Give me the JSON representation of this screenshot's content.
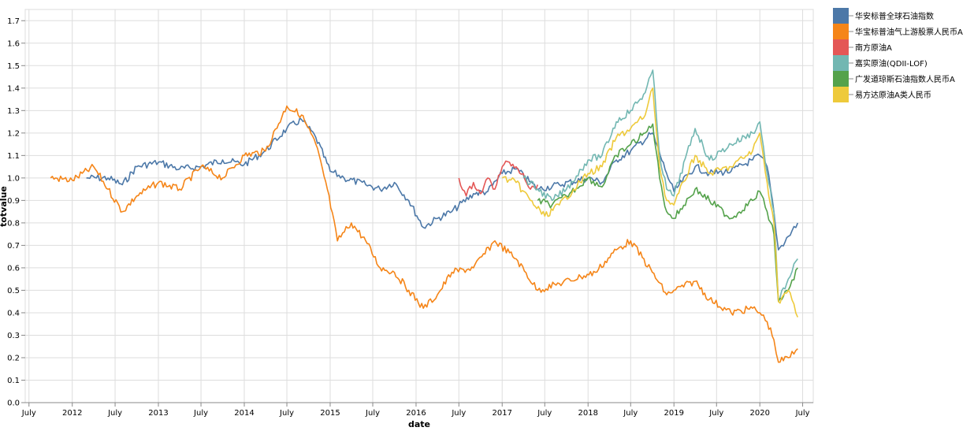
{
  "chart_data": {
    "type": "line",
    "xlabel": "date",
    "ylabel": "totvalue",
    "x_range": [
      "2011-06-15",
      "2020-08-15"
    ],
    "ylim": [
      0,
      1.75
    ],
    "y_ticks": [
      "0.0",
      "0.1",
      "0.2",
      "0.3",
      "0.4",
      "0.5",
      "0.6",
      "0.7",
      "0.8",
      "0.9",
      "1.0",
      "1.1",
      "1.2",
      "1.3",
      "1.4",
      "1.5",
      "1.6",
      "1.7"
    ],
    "x_ticks": [
      {
        "date": "2011-07-01",
        "label": "July"
      },
      {
        "date": "2012-01-01",
        "label": "2012"
      },
      {
        "date": "2012-07-01",
        "label": "July"
      },
      {
        "date": "2013-01-01",
        "label": "2013"
      },
      {
        "date": "2013-07-01",
        "label": "July"
      },
      {
        "date": "2014-01-01",
        "label": "2014"
      },
      {
        "date": "2014-07-01",
        "label": "July"
      },
      {
        "date": "2015-01-01",
        "label": "2015"
      },
      {
        "date": "2015-07-01",
        "label": "July"
      },
      {
        "date": "2016-01-01",
        "label": "2016"
      },
      {
        "date": "2016-07-01",
        "label": "July"
      },
      {
        "date": "2017-01-01",
        "label": "2017"
      },
      {
        "date": "2017-07-01",
        "label": "July"
      },
      {
        "date": "2018-01-01",
        "label": "2018"
      },
      {
        "date": "2018-07-01",
        "label": "July"
      },
      {
        "date": "2019-01-01",
        "label": "2019"
      },
      {
        "date": "2019-07-01",
        "label": "July"
      },
      {
        "date": "2020-01-01",
        "label": "2020"
      },
      {
        "date": "2020-07-01",
        "label": "July"
      }
    ],
    "grid": true,
    "legend_position": "right",
    "series": [
      {
        "name": "华安标普全球石油指数",
        "color": "#4c78a8",
        "x": [
          "2012-03-01",
          "2012-06-01",
          "2012-08-01",
          "2012-10-01",
          "2013-01-01",
          "2013-04-01",
          "2013-07-01",
          "2013-10-01",
          "2014-01-01",
          "2014-04-01",
          "2014-07-01",
          "2014-09-01",
          "2014-11-01",
          "2015-01-01",
          "2015-03-01",
          "2015-06-01",
          "2015-08-01",
          "2015-10-01",
          "2015-12-01",
          "2016-02-01",
          "2016-04-01",
          "2016-06-01",
          "2016-09-01",
          "2016-11-01",
          "2017-01-01",
          "2017-03-01",
          "2017-06-01",
          "2017-09-01",
          "2018-01-01",
          "2018-03-01",
          "2018-05-01",
          "2018-07-01",
          "2018-10-01",
          "2018-12-01",
          "2019-01-01",
          "2019-04-01",
          "2019-06-01",
          "2019-09-01",
          "2019-12-01",
          "2020-01-01",
          "2020-02-01",
          "2020-03-01",
          "2020-03-20",
          "2020-05-01",
          "2020-06-10"
        ],
        "y": [
          1.0,
          1.0,
          0.97,
          1.05,
          1.07,
          1.04,
          1.05,
          1.08,
          1.06,
          1.12,
          1.22,
          1.26,
          1.18,
          1.03,
          1.0,
          0.97,
          0.95,
          0.98,
          0.9,
          0.78,
          0.82,
          0.85,
          0.93,
          0.94,
          1.02,
          1.04,
          0.95,
          0.97,
          1.0,
          0.98,
          1.08,
          1.12,
          1.2,
          1.02,
          0.94,
          1.05,
          1.02,
          1.03,
          1.08,
          1.1,
          1.05,
          0.85,
          0.68,
          0.74,
          0.8
        ]
      },
      {
        "name": "华宝标普油气上游股票人民币A",
        "color": "#f58518",
        "x": [
          "2011-10-01",
          "2012-01-01",
          "2012-04-01",
          "2012-06-01",
          "2012-08-01",
          "2012-10-01",
          "2013-01-01",
          "2013-04-01",
          "2013-07-01",
          "2013-10-01",
          "2014-01-01",
          "2014-04-01",
          "2014-07-01",
          "2014-09-01",
          "2014-11-01",
          "2014-12-20",
          "2015-02-01",
          "2015-04-01",
          "2015-06-01",
          "2015-08-01",
          "2015-10-01",
          "2015-12-01",
          "2016-02-01",
          "2016-04-01",
          "2016-06-01",
          "2016-09-01",
          "2016-12-01",
          "2017-03-01",
          "2017-06-01",
          "2017-09-01",
          "2017-12-01",
          "2018-02-01",
          "2018-05-01",
          "2018-07-01",
          "2018-10-01",
          "2018-12-01",
          "2019-01-01",
          "2019-04-01",
          "2019-06-01",
          "2019-09-01",
          "2019-12-01",
          "2020-01-01",
          "2020-02-01",
          "2020-03-01",
          "2020-03-20",
          "2020-05-01",
          "2020-06-10"
        ],
        "y": [
          1.0,
          0.99,
          1.05,
          0.95,
          0.85,
          0.92,
          0.98,
          0.95,
          1.05,
          1.0,
          1.1,
          1.12,
          1.32,
          1.28,
          1.15,
          0.95,
          0.72,
          0.8,
          0.72,
          0.6,
          0.58,
          0.5,
          0.42,
          0.48,
          0.58,
          0.6,
          0.72,
          0.64,
          0.5,
          0.53,
          0.56,
          0.58,
          0.68,
          0.72,
          0.58,
          0.48,
          0.5,
          0.54,
          0.46,
          0.4,
          0.42,
          0.4,
          0.36,
          0.28,
          0.18,
          0.2,
          0.24
        ]
      },
      {
        "name": "南方原油A",
        "color": "#e45756",
        "x": [
          "2016-07-01",
          "2016-08-01",
          "2016-09-01",
          "2016-10-01",
          "2016-11-01",
          "2016-12-01",
          "2017-01-01",
          "2017-02-01",
          "2017-03-01",
          "2017-04-01",
          "2017-05-01",
          "2017-06-01"
        ],
        "y": [
          1.0,
          0.92,
          0.98,
          0.93,
          1.0,
          0.95,
          1.05,
          1.07,
          1.05,
          1.02,
          0.95,
          0.97
        ]
      },
      {
        "name": "嘉实原油(QDII-LOF)",
        "color": "#72b7b2",
        "x": [
          "2017-04-01",
          "2017-06-01",
          "2017-08-01",
          "2017-10-01",
          "2018-01-01",
          "2018-03-01",
          "2018-05-01",
          "2018-07-01",
          "2018-09-01",
          "2018-10-03",
          "2018-11-01",
          "2018-12-01",
          "2019-01-01",
          "2019-04-01",
          "2019-06-01",
          "2019-09-01",
          "2019-12-01",
          "2020-01-01",
          "2020-02-01",
          "2020-03-01",
          "2020-03-20",
          "2020-05-01",
          "2020-06-10"
        ],
        "y": [
          1.0,
          0.95,
          0.9,
          0.95,
          1.08,
          1.1,
          1.25,
          1.3,
          1.38,
          1.48,
          1.1,
          0.95,
          0.92,
          1.22,
          1.08,
          1.15,
          1.2,
          1.25,
          1.02,
          0.85,
          0.45,
          0.55,
          0.64
        ]
      },
      {
        "name": "广发道琼斯石油指数人民币A",
        "color": "#54a24b",
        "x": [
          "2017-06-01",
          "2017-08-01",
          "2017-10-01",
          "2018-01-01",
          "2018-03-01",
          "2018-05-01",
          "2018-07-01",
          "2018-09-01",
          "2018-10-03",
          "2018-11-01",
          "2018-12-01",
          "2019-01-01",
          "2019-04-01",
          "2019-06-01",
          "2019-09-01",
          "2019-12-01",
          "2020-01-01",
          "2020-02-01",
          "2020-03-01",
          "2020-03-20",
          "2020-05-01",
          "2020-06-10"
        ],
        "y": [
          0.9,
          0.88,
          0.92,
          1.0,
          0.96,
          1.1,
          1.15,
          1.2,
          1.24,
          1.0,
          0.85,
          0.82,
          0.95,
          0.9,
          0.82,
          0.9,
          0.94,
          0.85,
          0.75,
          0.45,
          0.5,
          0.6
        ]
      },
      {
        "name": "易方达原油A类人民币",
        "color": "#eeca3b",
        "x": [
          "2017-01-01",
          "2017-03-01",
          "2017-05-01",
          "2017-07-01",
          "2017-09-01",
          "2017-11-01",
          "2018-01-01",
          "2018-03-01",
          "2018-05-01",
          "2018-07-01",
          "2018-09-01",
          "2018-10-03",
          "2018-11-01",
          "2018-12-01",
          "2019-01-01",
          "2019-04-01",
          "2019-06-01",
          "2019-09-01",
          "2019-12-01",
          "2020-01-01",
          "2020-02-01",
          "2020-03-01",
          "2020-03-20",
          "2020-05-01",
          "2020-06-10"
        ],
        "y": [
          1.0,
          0.98,
          0.9,
          0.83,
          0.88,
          0.95,
          1.02,
          1.05,
          1.18,
          1.22,
          1.28,
          1.4,
          1.05,
          0.9,
          0.88,
          1.1,
          1.02,
          1.05,
          1.12,
          1.2,
          0.98,
          0.8,
          0.45,
          0.5,
          0.38
        ]
      }
    ]
  }
}
